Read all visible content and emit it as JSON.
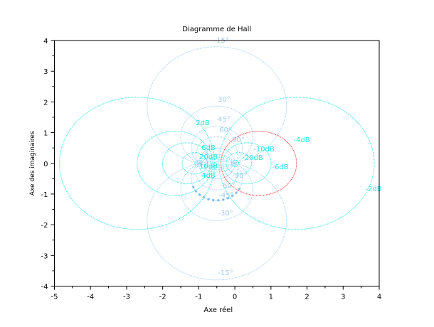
{
  "chart_data": {
    "type": "line",
    "title": "Diagramme de Hall",
    "xlabel": "Axe réel",
    "ylabel": "Axe des imaginaires",
    "xlim": [
      -5,
      4
    ],
    "ylim": [
      -4,
      4
    ],
    "xticks": [
      "-5",
      "-4",
      "-3",
      "-2",
      "-1",
      "0",
      "1",
      "2",
      "3",
      "4"
    ],
    "yticks": [
      "-4",
      "-3",
      "-2",
      "-1",
      "0",
      "1",
      "2",
      "3",
      "4"
    ],
    "gain_circles_db": [
      -20,
      -10,
      -6,
      -4,
      -2,
      2,
      4,
      6,
      10,
      20
    ],
    "highlighted_gain_db": -4,
    "phase_circles_deg": [
      15,
      30,
      45,
      60,
      90,
      -90,
      -60,
      -45,
      -30,
      -15
    ],
    "highlighted_phase_deg": -45,
    "gain_labels": [
      "2dB",
      "6dB",
      "20dB",
      "10dB",
      "4dB",
      "-20dB",
      "-10dB",
      "-6dB",
      "-4dB",
      "-2dB"
    ],
    "phase_labels": [
      "15°",
      "30°",
      "45°",
      "60°",
      "90°",
      "-90°",
      "-60°",
      "-45°",
      "-30°",
      "-15°"
    ],
    "colors": {
      "gain": "#22e8e8",
      "phase": "#9fcdf2",
      "highlight": "#ff2020",
      "axes": "#000000"
    }
  }
}
